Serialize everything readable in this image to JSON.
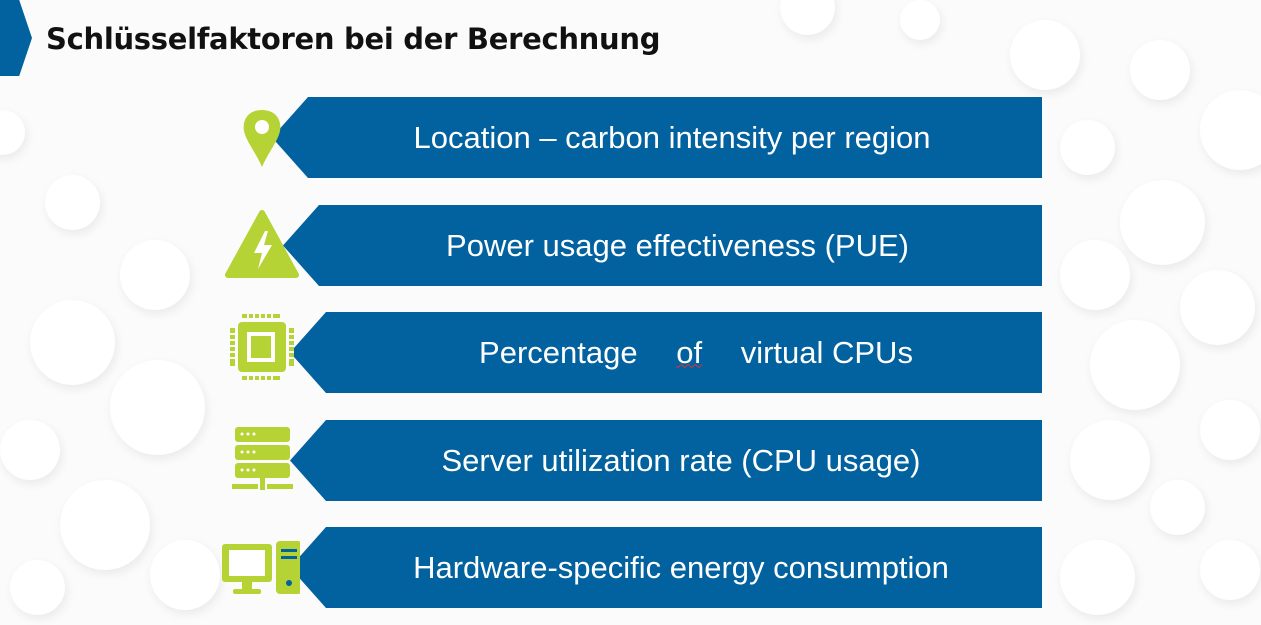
{
  "title": "Schlüsselfaktoren bei der Berechnung",
  "colors": {
    "banner": "#02619f",
    "icon": "#b5d334",
    "title": "#111111"
  },
  "factors": [
    {
      "icon": "location-pin-icon",
      "label": "Location – carbon intensity per region"
    },
    {
      "icon": "power-warning-icon",
      "label": "Power usage effectiveness (PUE)"
    },
    {
      "icon": "cpu-chip-icon",
      "label_before": "Percentage ",
      "label_flagged": "of",
      "label_after": " virtual CPUs"
    },
    {
      "icon": "server-icon",
      "label": "Server utilization rate (CPU usage)"
    },
    {
      "icon": "computer-hardware-icon",
      "label": "Hardware-specific energy consumption"
    }
  ]
}
